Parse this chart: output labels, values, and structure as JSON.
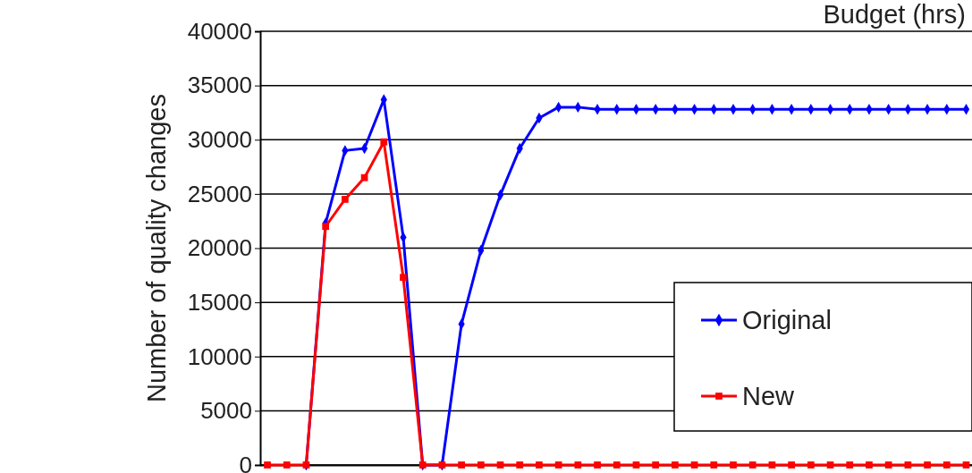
{
  "chart_data": {
    "type": "line",
    "title": "Budget (hrs)",
    "ylabel": "Number of quality changes",
    "categories": [
      null,
      null,
      null,
      null,
      null,
      null,
      null,
      null,
      null,
      null,
      null,
      null,
      null,
      null,
      null,
      null,
      null,
      null,
      null,
      null,
      null,
      null,
      null,
      null,
      null,
      null,
      null,
      null,
      null,
      null,
      null,
      null,
      null,
      null,
      null,
      null,
      null
    ],
    "series": [
      {
        "name": "Original",
        "color": "#0000ff",
        "marker": "diamond",
        "values": [
          null,
          null,
          0,
          22300,
          29000,
          29200,
          33700,
          21000,
          0,
          0,
          13000,
          19800,
          24900,
          29200,
          32000,
          33000,
          33000,
          32800,
          32800,
          32800,
          32800,
          32800,
          32800,
          32800,
          32800,
          32800,
          32800,
          32800,
          32800,
          32800,
          32800,
          32800,
          32800,
          32800,
          32800,
          32800,
          32800
        ]
      },
      {
        "name": "New",
        "color": "#ff0000",
        "marker": "square",
        "values": [
          0,
          0,
          0,
          22000,
          24500,
          26500,
          29800,
          17300,
          0,
          0,
          0,
          0,
          0,
          0,
          0,
          0,
          0,
          0,
          0,
          0,
          0,
          0,
          0,
          0,
          0,
          0,
          0,
          0,
          0,
          0,
          0,
          0,
          0,
          0,
          0,
          0,
          0
        ]
      }
    ],
    "ylim": [
      0,
      40000
    ],
    "yticks": [
      0,
      5000,
      10000,
      15000,
      20000,
      25000,
      30000,
      35000,
      40000
    ],
    "grid": "y",
    "legend": "right",
    "line_style": "solid"
  }
}
